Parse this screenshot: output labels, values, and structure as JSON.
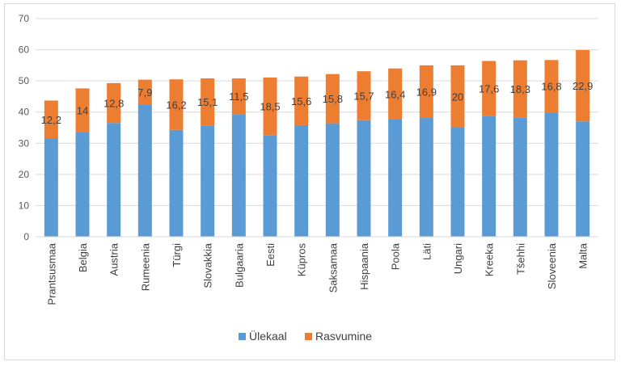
{
  "chart_data": {
    "type": "bar",
    "stacked": true,
    "categories": [
      "Prantsusmaa",
      "Belgia",
      "Austria",
      "Rumeenia",
      "Türgi",
      "Slovakkia",
      "Bulgaaria",
      "Eesti",
      "Küpros",
      "Saksamaa",
      "Hispaania",
      "Poola",
      "Läti",
      "Ungari",
      "Kreeka",
      "Tšehhi",
      "Sloveenia",
      "Malta"
    ],
    "series": [
      {
        "name": "Ülekaal",
        "color": "#5b9bd5",
        "values": [
          31.5,
          33.6,
          36.5,
          42.5,
          34.3,
          35.7,
          39.3,
          32.6,
          35.8,
          36.4,
          37.4,
          37.6,
          38.1,
          35.0,
          38.8,
          38.3,
          39.9,
          37.0
        ]
      },
      {
        "name": "Rasvumine",
        "color": "#ed7d31",
        "values": [
          12.2,
          14,
          12.8,
          7.9,
          16.2,
          15.1,
          11.5,
          18.5,
          15.6,
          15.8,
          15.7,
          16.4,
          16.9,
          20,
          17.6,
          18.3,
          16.8,
          22.9
        ],
        "labels": [
          "12,2",
          "14",
          "12,8",
          "7,9",
          "16,2",
          "15,1",
          "11,5",
          "18,5",
          "15,6",
          "15,8",
          "15,7",
          "16,4",
          "16,9",
          "20",
          "17,6",
          "18,3",
          "16,8",
          "22,9"
        ]
      }
    ],
    "yticks": [
      "0",
      "10",
      "20",
      "30",
      "40",
      "50",
      "60",
      "70"
    ],
    "ylim": [
      0,
      70
    ],
    "legend_position": "bottom",
    "grid": true
  }
}
